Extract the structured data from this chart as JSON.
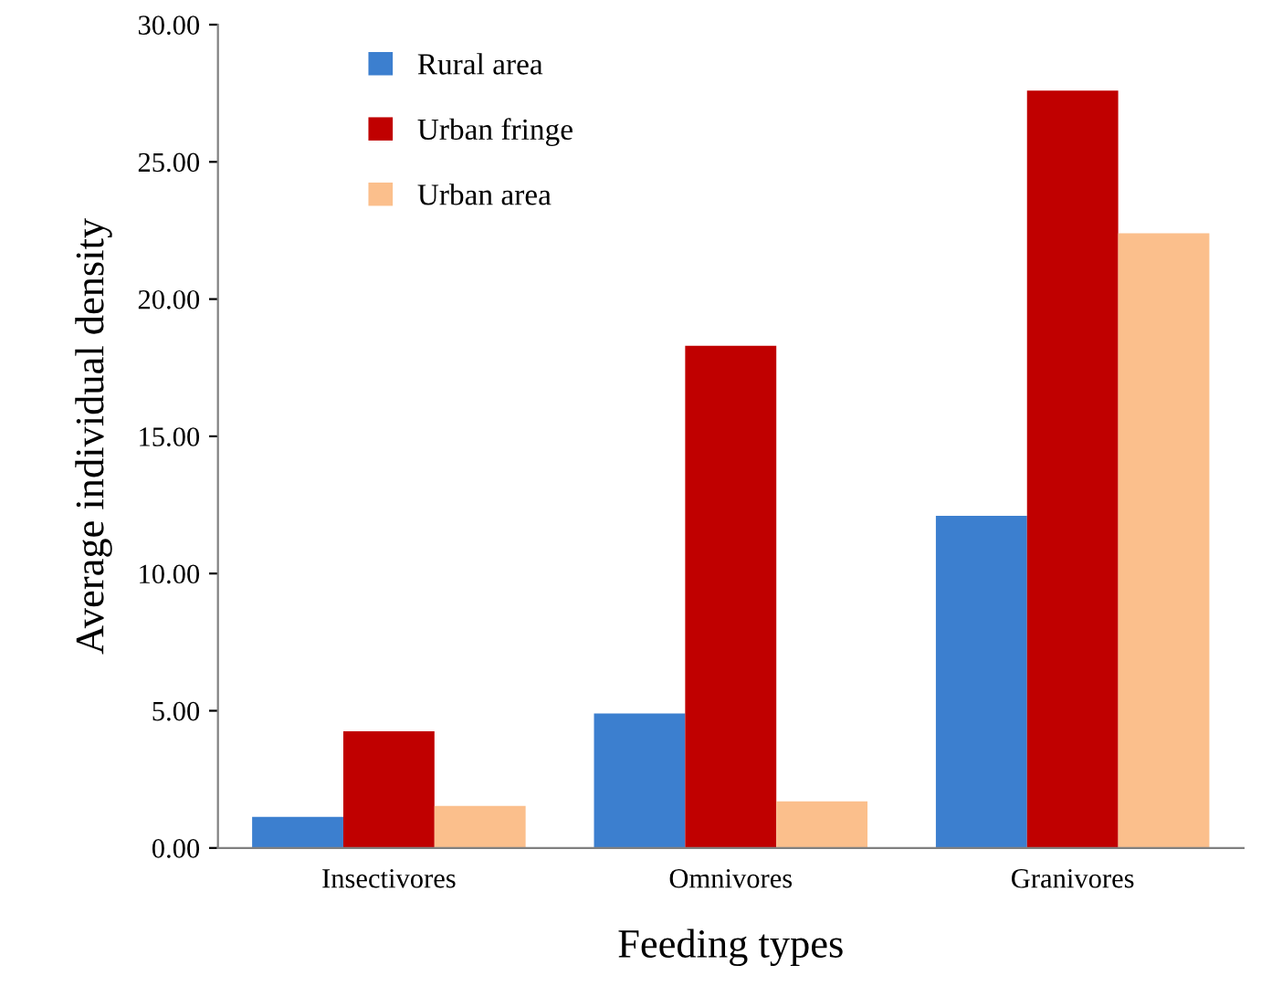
{
  "chart_data": {
    "type": "bar",
    "xlabel": "Feeding types",
    "ylabel": "Average individual density",
    "categories": [
      "Insectivores",
      "Omnivores",
      "Granivores"
    ],
    "series": [
      {
        "name": "Rural area",
        "color": "#3c7fcf",
        "values": [
          1.13,
          4.9,
          12.1
        ]
      },
      {
        "name": "Urban fringe",
        "color": "#c00000",
        "values": [
          4.25,
          18.3,
          27.6
        ]
      },
      {
        "name": "Urban area",
        "color": "#fbbf8c",
        "values": [
          1.53,
          1.7,
          22.4
        ]
      }
    ],
    "ylim": [
      0,
      30
    ],
    "yticks": [
      {
        "value": 0,
        "label": "0.00"
      },
      {
        "value": 5,
        "label": "5.00"
      },
      {
        "value": 10,
        "label": "10.00"
      },
      {
        "value": 15,
        "label": "15.00"
      },
      {
        "value": 20,
        "label": "20.00"
      },
      {
        "value": 25,
        "label": "25.00"
      },
      {
        "value": 30,
        "label": "30.00"
      }
    ],
    "grid": false,
    "legend": "top left"
  }
}
